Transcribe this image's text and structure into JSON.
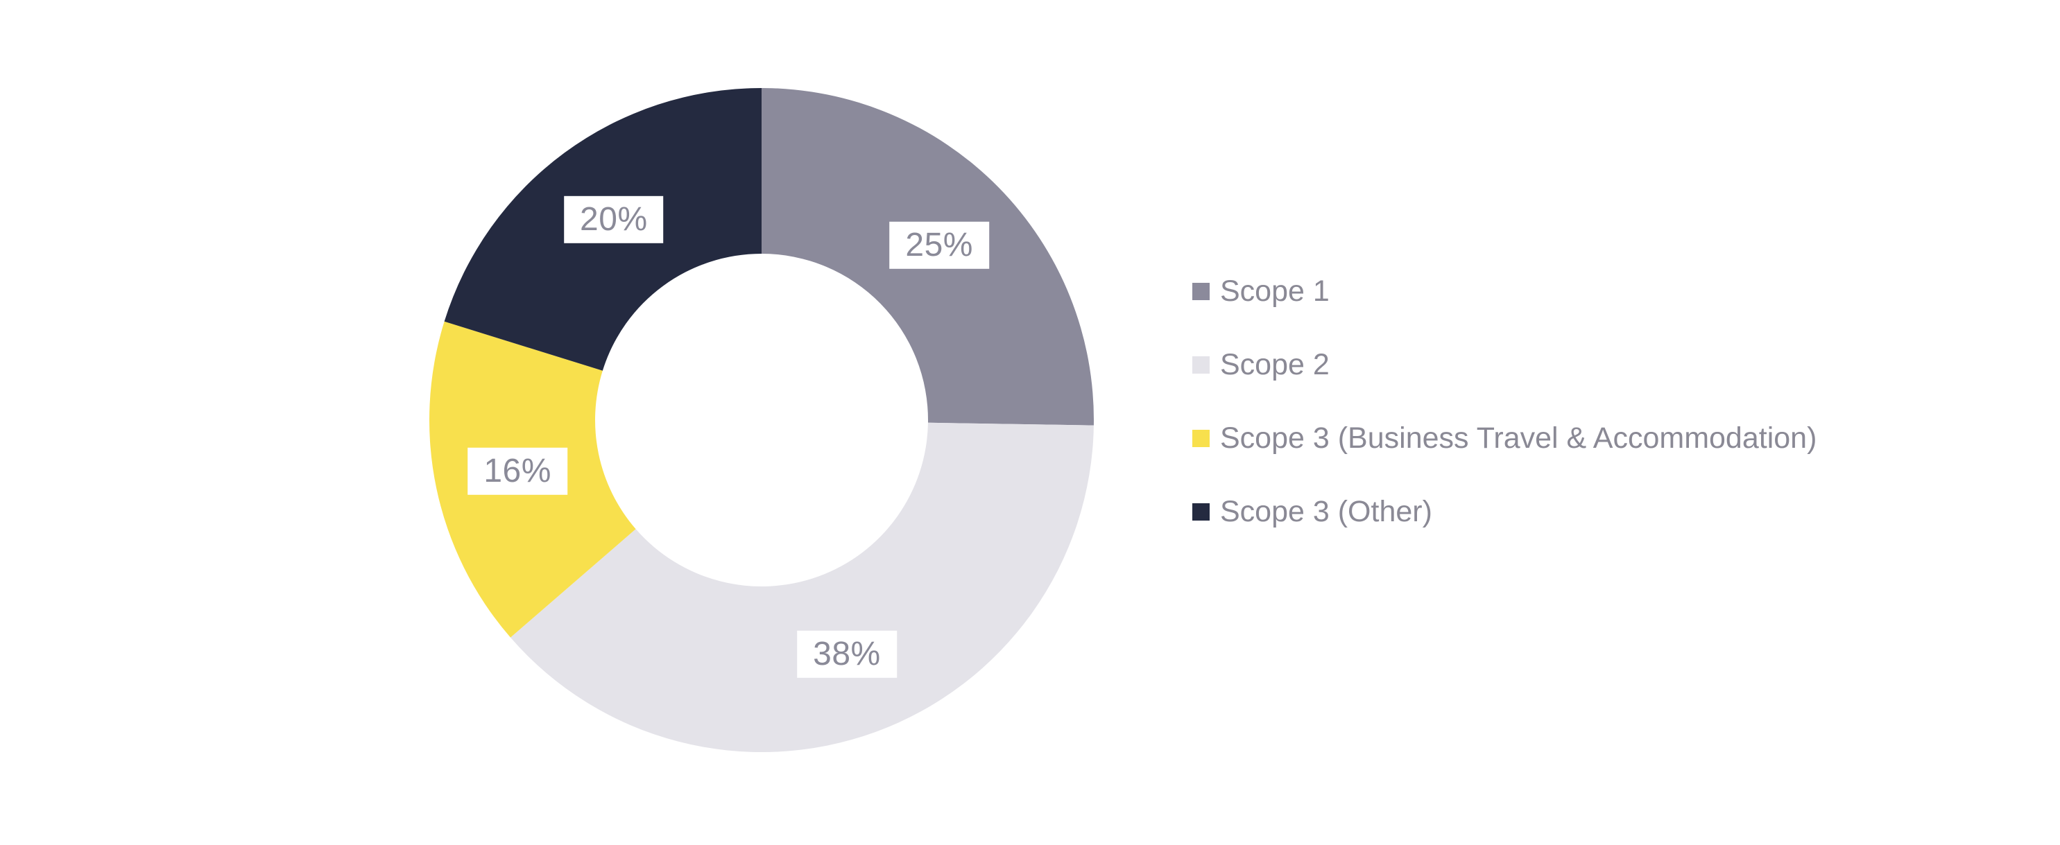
{
  "chart_data": {
    "type": "pie",
    "subtype": "donut",
    "title": "",
    "slices": [
      {
        "label": "Scope 1",
        "value": 25,
        "pct_label": "25%",
        "color": "#8B8A9B"
      },
      {
        "label": "Scope 2",
        "value": 38,
        "pct_label": "38%",
        "color": "#E4E3E9"
      },
      {
        "label": "Scope 3 (Business Travel & Accommodation)",
        "value": 16,
        "pct_label": "16%",
        "color": "#F8E04D"
      },
      {
        "label": "Scope 3 (Other)",
        "value": 20,
        "pct_label": "20%",
        "color": "#242A40"
      }
    ],
    "start_angle_deg": 0,
    "direction": "clockwise",
    "inner_radius_ratio": 0.5,
    "legend_position": "right",
    "background_color": "#FFFFFF",
    "label_box_color": "#FFFFFF",
    "label_text_color": "#8A8A98",
    "legend_text_color": "#8A8995"
  }
}
